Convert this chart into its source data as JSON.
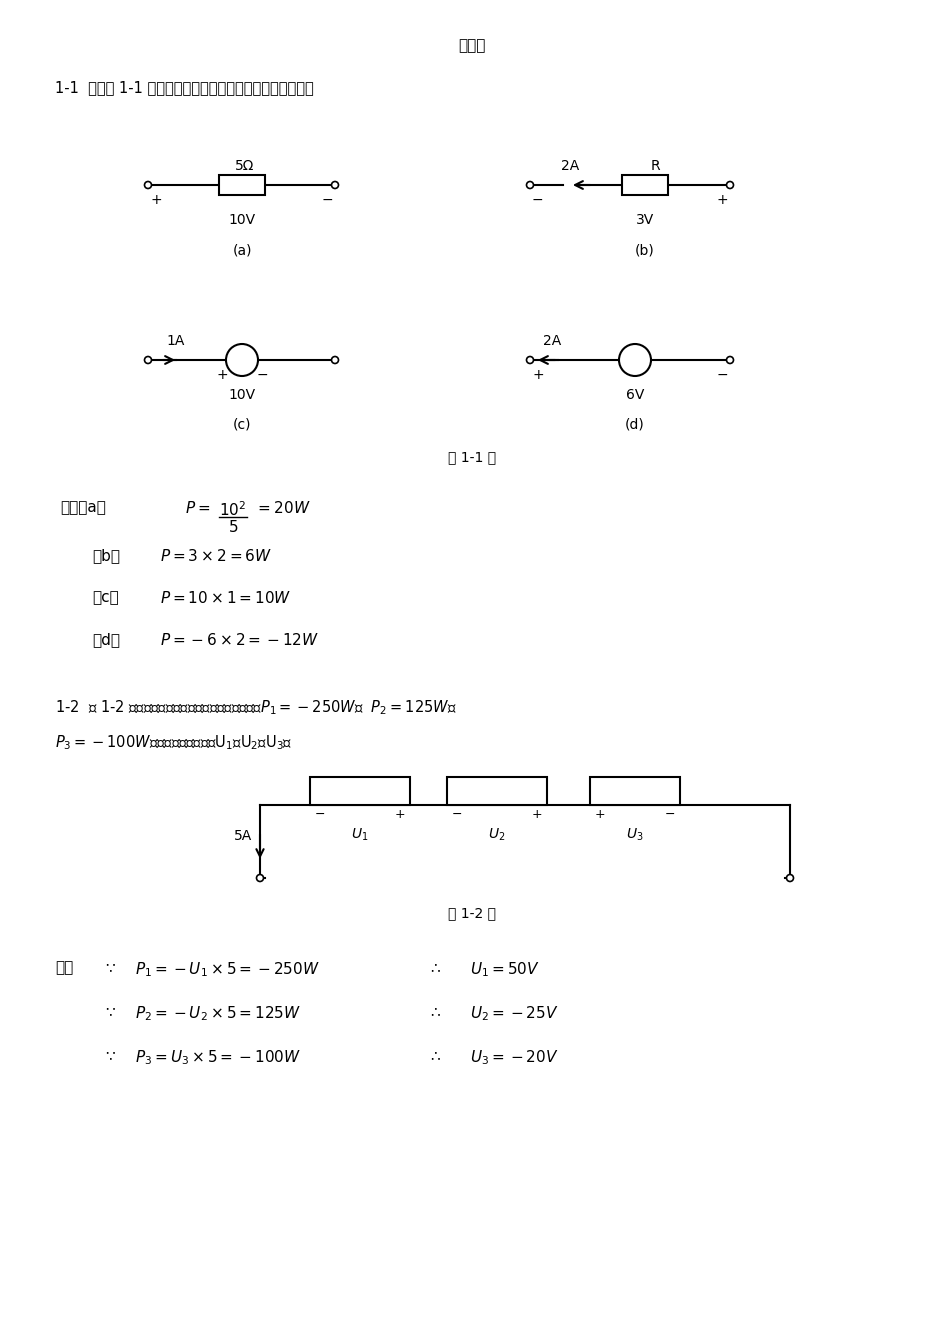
{
  "bg_color": "#ffffff",
  "text_color": "#000000",
  "title": "习题一",
  "p11_text": "1-1  根据题 1-1 图中给定的数值，计算各元件吸收的功率。",
  "label_11": "题 1-1 图",
  "label_12": "题 1-2 图",
  "p12_line1": "1-2  题 1-2 图示电路，已知各元件发出的功率分别为 $P_1=-250W$，  $P_2=125W$，",
  "p12_line2": "$P_3=-100W$。求各元件上的电压U₁、U₂及U₃。"
}
